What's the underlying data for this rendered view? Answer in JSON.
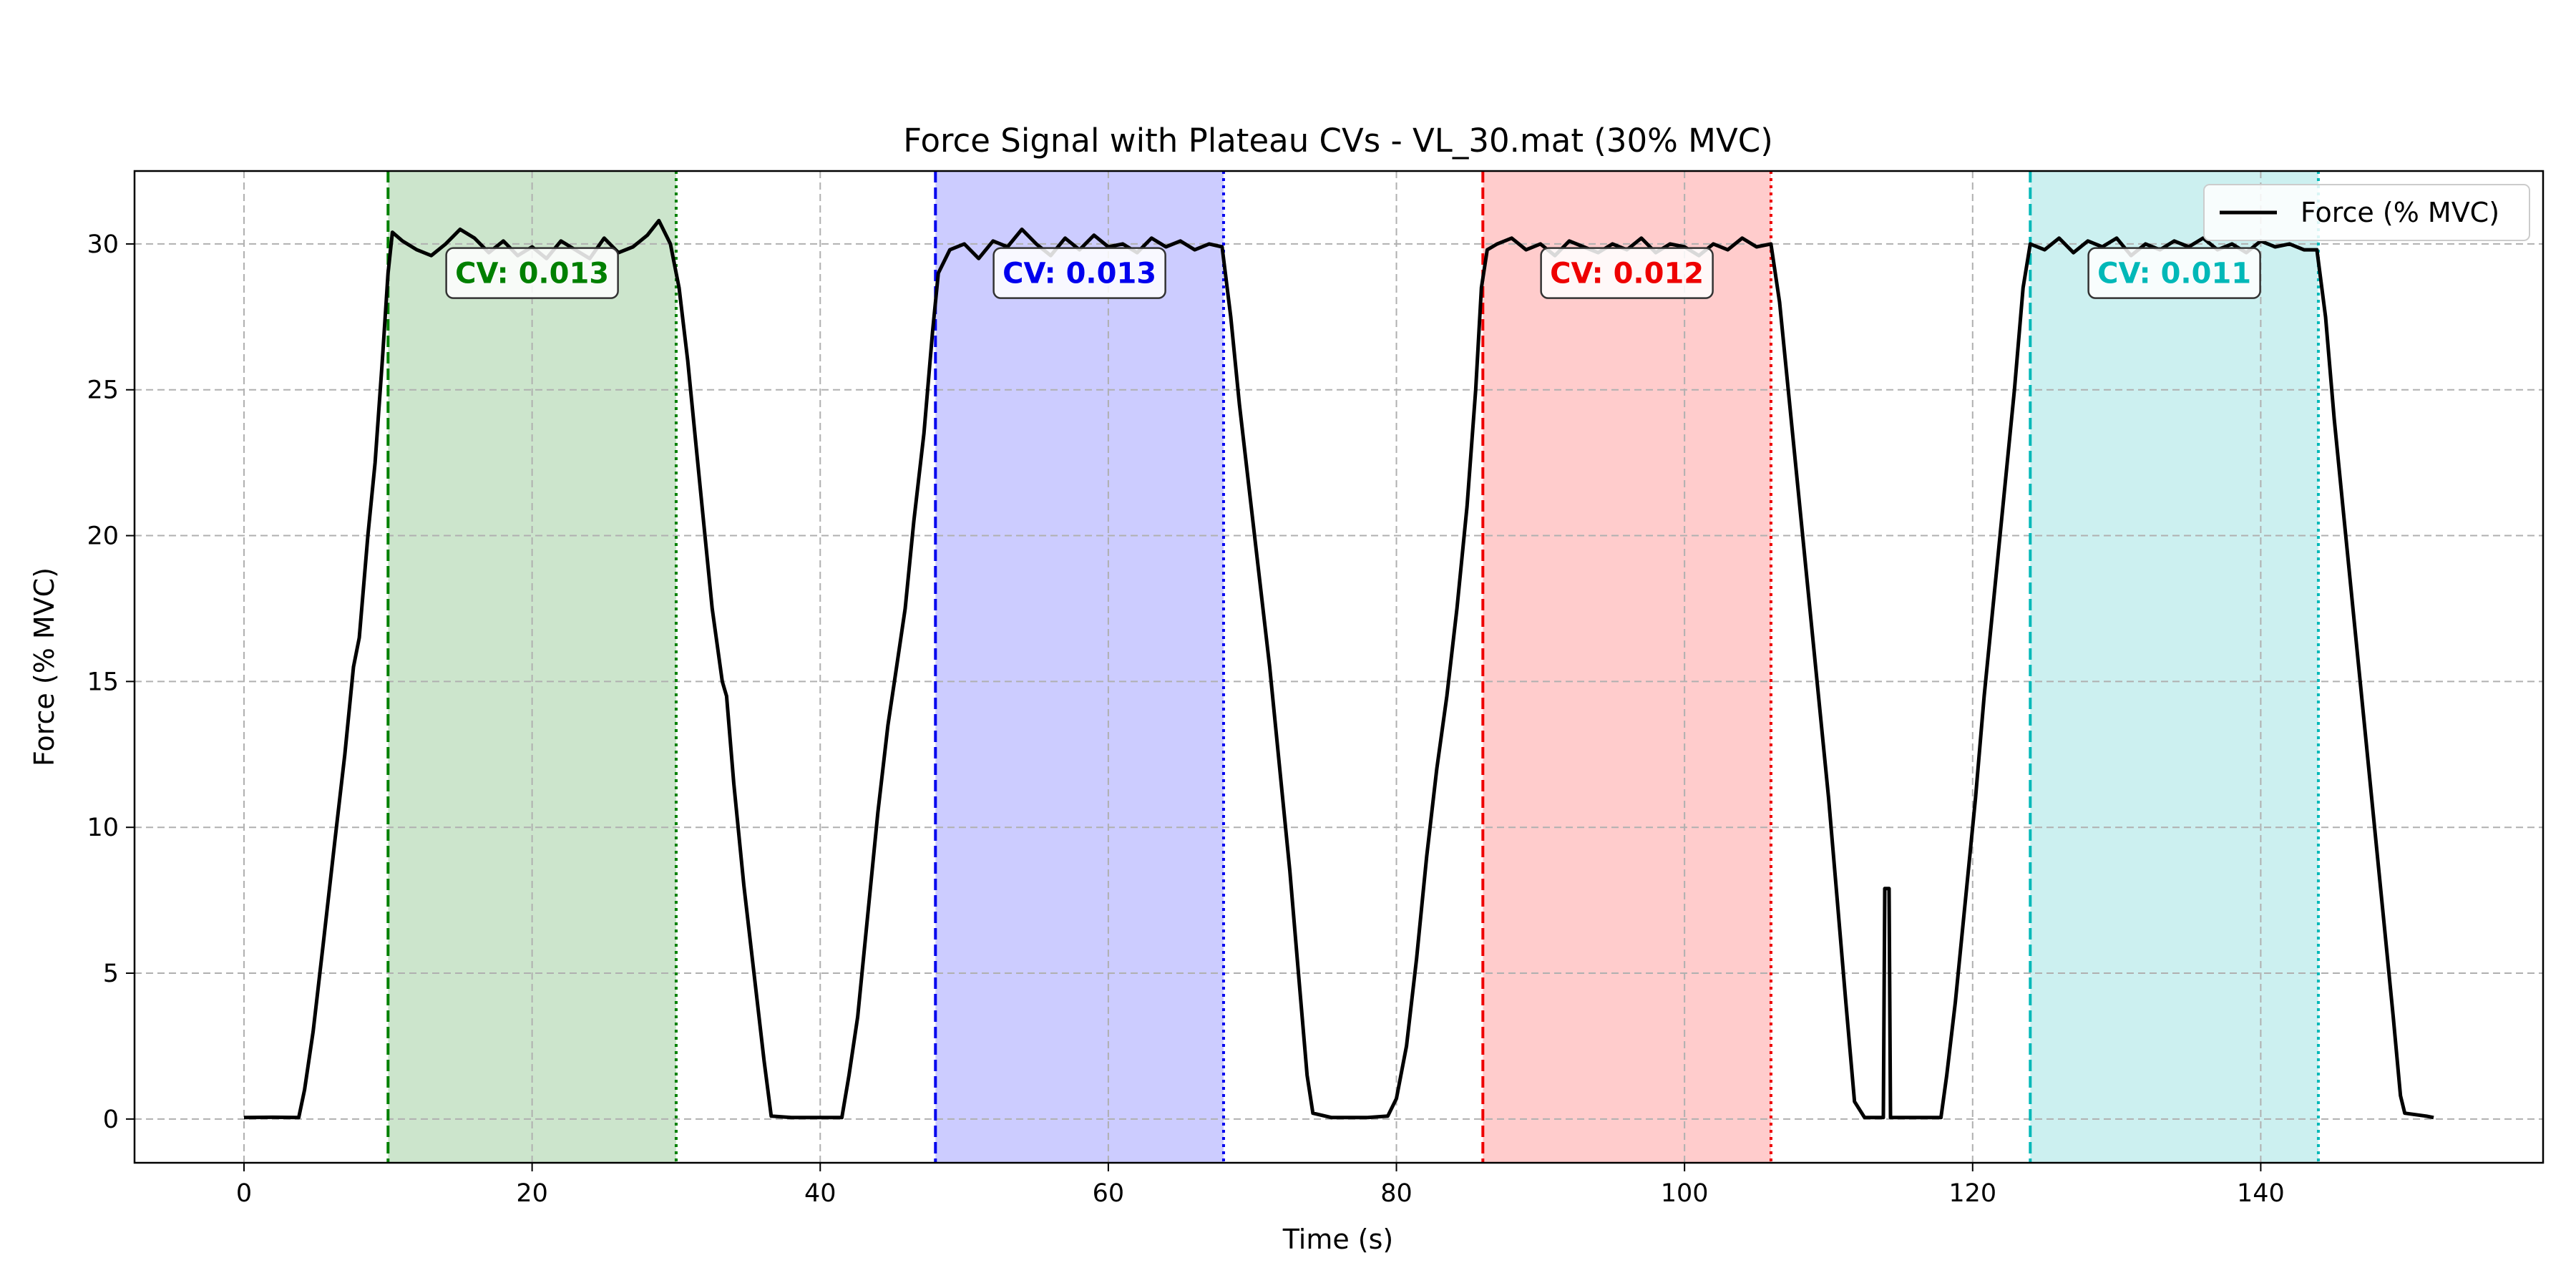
{
  "chart_data": {
    "type": "line",
    "title": "Force Signal with Plateau CVs - VL_30.mat (30% MVC)",
    "xlabel": "Time (s)",
    "ylabel": "Force (% MVC)",
    "xlim": [
      -7.6,
      159.6
    ],
    "ylim": [
      -1.5,
      32.5
    ],
    "xticks": [
      0,
      20,
      40,
      60,
      80,
      100,
      120,
      140
    ],
    "yticks": [
      0,
      5,
      10,
      15,
      20,
      25,
      30
    ],
    "xtick_labels": [
      "0",
      "20",
      "40",
      "60",
      "80",
      "100",
      "120",
      "140"
    ],
    "ytick_labels": [
      "0",
      "5",
      "10",
      "15",
      "20",
      "25",
      "30"
    ],
    "grid": true,
    "legend": {
      "position": "top-right",
      "entries": [
        "Force (% MVC)"
      ]
    },
    "series": [
      {
        "name": "Force (% MVC)",
        "color": "#000000",
        "points": [
          [
            0,
            0.05
          ],
          [
            2,
            0.06
          ],
          [
            3.8,
            0.05
          ],
          [
            4.2,
            1.0
          ],
          [
            4.8,
            3.0
          ],
          [
            5.5,
            6.0
          ],
          [
            6.3,
            9.5
          ],
          [
            7.0,
            12.5
          ],
          [
            7.6,
            15.5
          ],
          [
            8.0,
            16.5
          ],
          [
            8.6,
            20.0
          ],
          [
            9.1,
            22.5
          ],
          [
            9.6,
            26.0
          ],
          [
            10.0,
            29.0
          ],
          [
            10.3,
            30.4
          ],
          [
            11,
            30.1
          ],
          [
            12,
            29.8
          ],
          [
            13,
            29.6
          ],
          [
            14,
            30.0
          ],
          [
            15,
            30.5
          ],
          [
            16,
            30.2
          ],
          [
            17,
            29.7
          ],
          [
            18,
            30.1
          ],
          [
            19,
            29.6
          ],
          [
            20,
            29.9
          ],
          [
            21,
            29.5
          ],
          [
            22,
            30.1
          ],
          [
            23,
            29.8
          ],
          [
            24,
            29.5
          ],
          [
            25,
            30.2
          ],
          [
            26,
            29.7
          ],
          [
            27,
            29.9
          ],
          [
            28,
            30.3
          ],
          [
            28.8,
            30.8
          ],
          [
            29.6,
            30.0
          ],
          [
            30.2,
            28.5
          ],
          [
            30.8,
            26.0
          ],
          [
            31.4,
            23.0
          ],
          [
            32.0,
            20.0
          ],
          [
            32.5,
            17.5
          ],
          [
            33.2,
            15.0
          ],
          [
            33.5,
            14.5
          ],
          [
            34.0,
            11.5
          ],
          [
            34.7,
            8.0
          ],
          [
            35.4,
            5.0
          ],
          [
            36.1,
            2.0
          ],
          [
            36.6,
            0.1
          ],
          [
            38,
            0.05
          ],
          [
            41.5,
            0.05
          ],
          [
            42.0,
            1.5
          ],
          [
            42.6,
            3.5
          ],
          [
            43.3,
            7.0
          ],
          [
            44.0,
            10.5
          ],
          [
            44.7,
            13.5
          ],
          [
            45.3,
            15.5
          ],
          [
            45.9,
            17.5
          ],
          [
            46.5,
            20.5
          ],
          [
            47.2,
            23.5
          ],
          [
            47.8,
            27.0
          ],
          [
            48.2,
            29.0
          ],
          [
            49,
            29.8
          ],
          [
            50,
            30.0
          ],
          [
            51,
            29.5
          ],
          [
            52,
            30.1
          ],
          [
            53,
            29.9
          ],
          [
            54,
            30.5
          ],
          [
            55,
            30.0
          ],
          [
            56,
            29.6
          ],
          [
            57,
            30.2
          ],
          [
            58,
            29.8
          ],
          [
            59,
            30.3
          ],
          [
            60,
            29.9
          ],
          [
            61,
            30.0
          ],
          [
            62,
            29.7
          ],
          [
            63,
            30.2
          ],
          [
            64,
            29.9
          ],
          [
            65,
            30.1
          ],
          [
            66,
            29.8
          ],
          [
            67,
            30.0
          ],
          [
            67.9,
            29.9
          ],
          [
            68.5,
            27.5
          ],
          [
            69.1,
            24.5
          ],
          [
            69.8,
            21.5
          ],
          [
            70.5,
            18.5
          ],
          [
            71.2,
            15.5
          ],
          [
            71.9,
            12.0
          ],
          [
            72.6,
            8.5
          ],
          [
            73.2,
            5.0
          ],
          [
            73.8,
            1.5
          ],
          [
            74.2,
            0.2
          ],
          [
            75.5,
            0.05
          ],
          [
            78,
            0.05
          ],
          [
            79.4,
            0.1
          ],
          [
            80.0,
            0.7
          ],
          [
            80.7,
            2.5
          ],
          [
            81.4,
            5.5
          ],
          [
            82.1,
            9.0
          ],
          [
            82.8,
            12.0
          ],
          [
            83.5,
            14.5
          ],
          [
            84.2,
            17.5
          ],
          [
            84.9,
            21.0
          ],
          [
            85.5,
            25.0
          ],
          [
            85.9,
            28.5
          ],
          [
            86.3,
            29.8
          ],
          [
            87,
            30.0
          ],
          [
            88,
            30.2
          ],
          [
            89,
            29.8
          ],
          [
            90,
            30.0
          ],
          [
            91,
            29.6
          ],
          [
            92,
            30.1
          ],
          [
            93,
            29.9
          ],
          [
            94,
            29.7
          ],
          [
            95,
            30.0
          ],
          [
            96,
            29.8
          ],
          [
            97,
            30.2
          ],
          [
            98,
            29.7
          ],
          [
            99,
            30.0
          ],
          [
            100,
            29.9
          ],
          [
            101,
            29.6
          ],
          [
            102,
            30.0
          ],
          [
            103,
            29.8
          ],
          [
            104,
            30.2
          ],
          [
            105,
            29.9
          ],
          [
            106,
            30.0
          ],
          [
            106.6,
            28.0
          ],
          [
            107.2,
            25.0
          ],
          [
            107.9,
            21.5
          ],
          [
            108.6,
            18.0
          ],
          [
            109.3,
            14.5
          ],
          [
            110.0,
            11.0
          ],
          [
            110.6,
            7.5
          ],
          [
            111.2,
            4.0
          ],
          [
            111.8,
            0.6
          ],
          [
            112.5,
            0.05
          ],
          [
            113.8,
            0.05
          ],
          [
            113.9,
            7.9
          ],
          [
            114.2,
            7.9
          ],
          [
            114.3,
            0.05
          ],
          [
            116,
            0.05
          ],
          [
            117.8,
            0.05
          ],
          [
            118.2,
            1.5
          ],
          [
            118.8,
            4.0
          ],
          [
            119.5,
            7.5
          ],
          [
            120.2,
            11.0
          ],
          [
            120.8,
            14.5
          ],
          [
            121.5,
            18.0
          ],
          [
            122.2,
            21.5
          ],
          [
            122.9,
            25.0
          ],
          [
            123.5,
            28.5
          ],
          [
            124.0,
            30.0
          ],
          [
            125,
            29.8
          ],
          [
            126,
            30.2
          ],
          [
            127,
            29.7
          ],
          [
            128,
            30.1
          ],
          [
            129,
            29.9
          ],
          [
            130,
            30.2
          ],
          [
            131,
            29.6
          ],
          [
            132,
            30.0
          ],
          [
            133,
            29.8
          ],
          [
            134,
            30.1
          ],
          [
            135,
            29.9
          ],
          [
            136,
            30.2
          ],
          [
            137,
            29.8
          ],
          [
            138,
            30.0
          ],
          [
            139,
            29.7
          ],
          [
            140,
            30.1
          ],
          [
            141,
            29.9
          ],
          [
            142,
            30.0
          ],
          [
            143,
            29.8
          ],
          [
            143.9,
            29.8
          ],
          [
            144.5,
            27.5
          ],
          [
            145.1,
            24.0
          ],
          [
            145.8,
            20.5
          ],
          [
            146.5,
            17.0
          ],
          [
            147.2,
            13.5
          ],
          [
            147.9,
            10.0
          ],
          [
            148.6,
            6.5
          ],
          [
            149.2,
            3.5
          ],
          [
            149.7,
            0.8
          ],
          [
            150.0,
            0.2
          ],
          [
            151.5,
            0.1
          ],
          [
            152,
            0.05
          ]
        ]
      }
    ],
    "plateaus": [
      {
        "start": 10,
        "end": 30,
        "label": "CV: 0.013",
        "color": "#008000",
        "fill": "#cce5cc",
        "label_x": 20
      },
      {
        "start": 48,
        "end": 68,
        "label": "CV: 0.013",
        "color": "#0000ee",
        "fill": "#ccccff",
        "label_x": 58
      },
      {
        "start": 86,
        "end": 106,
        "label": "CV: 0.012",
        "color": "#ee0000",
        "fill": "#ffcccc",
        "label_x": 96
      },
      {
        "start": 124,
        "end": 144,
        "label": "CV: 0.011",
        "color": "#00b8b8",
        "fill": "#ccf0f0",
        "label_x": 134
      }
    ],
    "cv_label_y": 29.0
  }
}
